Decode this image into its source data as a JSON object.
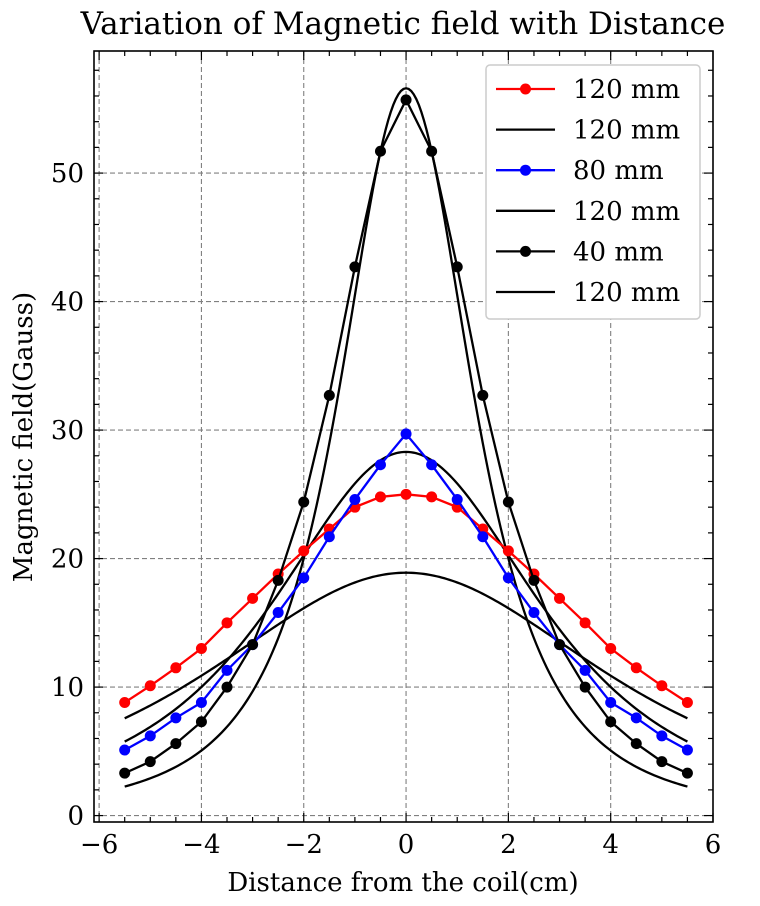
{
  "chart_data": {
    "type": "line",
    "title": "Variation of Magnetic field with Distance",
    "xlabel": "Distance from the coil(cm)",
    "ylabel": "Magnetic field(Gauss)",
    "xlim": [
      -6.1,
      6.0
    ],
    "ylim": [
      -0.5,
      59.5
    ],
    "xticks": [
      -6,
      -4,
      -2,
      0,
      2,
      4,
      6
    ],
    "xtick_labels": [
      "−6",
      "−4",
      "−2",
      "0",
      "2",
      "4",
      "6"
    ],
    "yticks": [
      0,
      10,
      20,
      30,
      40,
      50
    ],
    "ytick_labels": [
      "0",
      "10",
      "20",
      "30",
      "40",
      "50"
    ],
    "grid": true,
    "legend_position": "top-right",
    "x": [
      -5.5,
      -5.0,
      -4.5,
      -4.0,
      -3.5,
      -3.0,
      -2.5,
      -2.0,
      -1.5,
      -1.0,
      -0.5,
      0.0,
      0.5,
      1.0,
      1.5,
      2.0,
      2.5,
      3.0,
      3.5,
      4.0,
      4.5,
      5.0,
      5.5
    ],
    "series": [
      {
        "name": "120 mm",
        "kind": "points",
        "color": "#ff0000",
        "values": [
          8.8,
          10.1,
          11.5,
          13.0,
          15.0,
          16.9,
          18.8,
          20.6,
          22.3,
          24.0,
          24.8,
          25.0,
          24.8,
          24.0,
          22.3,
          20.6,
          18.8,
          16.9,
          15.0,
          13.0,
          11.5,
          10.1,
          8.8
        ]
      },
      {
        "name": "120 mm",
        "kind": "fit",
        "color": "#000000",
        "peak": 18.9,
        "width": 6.0,
        "xrange": [
          -5.5,
          5.5
        ]
      },
      {
        "name": "80 mm",
        "kind": "points",
        "color": "#0000ff",
        "values": [
          5.1,
          6.2,
          7.6,
          8.8,
          11.3,
          13.3,
          15.8,
          18.5,
          21.7,
          24.6,
          27.3,
          29.7,
          27.3,
          24.6,
          21.7,
          18.5,
          15.8,
          13.3,
          11.3,
          8.8,
          7.6,
          6.2,
          5.1
        ]
      },
      {
        "name": "120 mm",
        "kind": "fit",
        "color": "#000000",
        "peak": 28.3,
        "width": 4.0,
        "xrange": [
          -5.5,
          5.5
        ]
      },
      {
        "name": "40 mm",
        "kind": "points",
        "color": "#000000",
        "values": [
          3.3,
          4.2,
          5.6,
          7.3,
          10.0,
          13.3,
          18.3,
          24.4,
          32.7,
          42.7,
          51.7,
          55.7,
          51.7,
          42.7,
          32.7,
          24.4,
          18.3,
          13.3,
          10.0,
          7.3,
          5.6,
          4.2,
          3.3
        ]
      },
      {
        "name": "120 mm",
        "kind": "fit",
        "color": "#000000",
        "peak": 56.6,
        "width": 2.0,
        "xrange": [
          -5.5,
          5.5
        ]
      }
    ]
  }
}
